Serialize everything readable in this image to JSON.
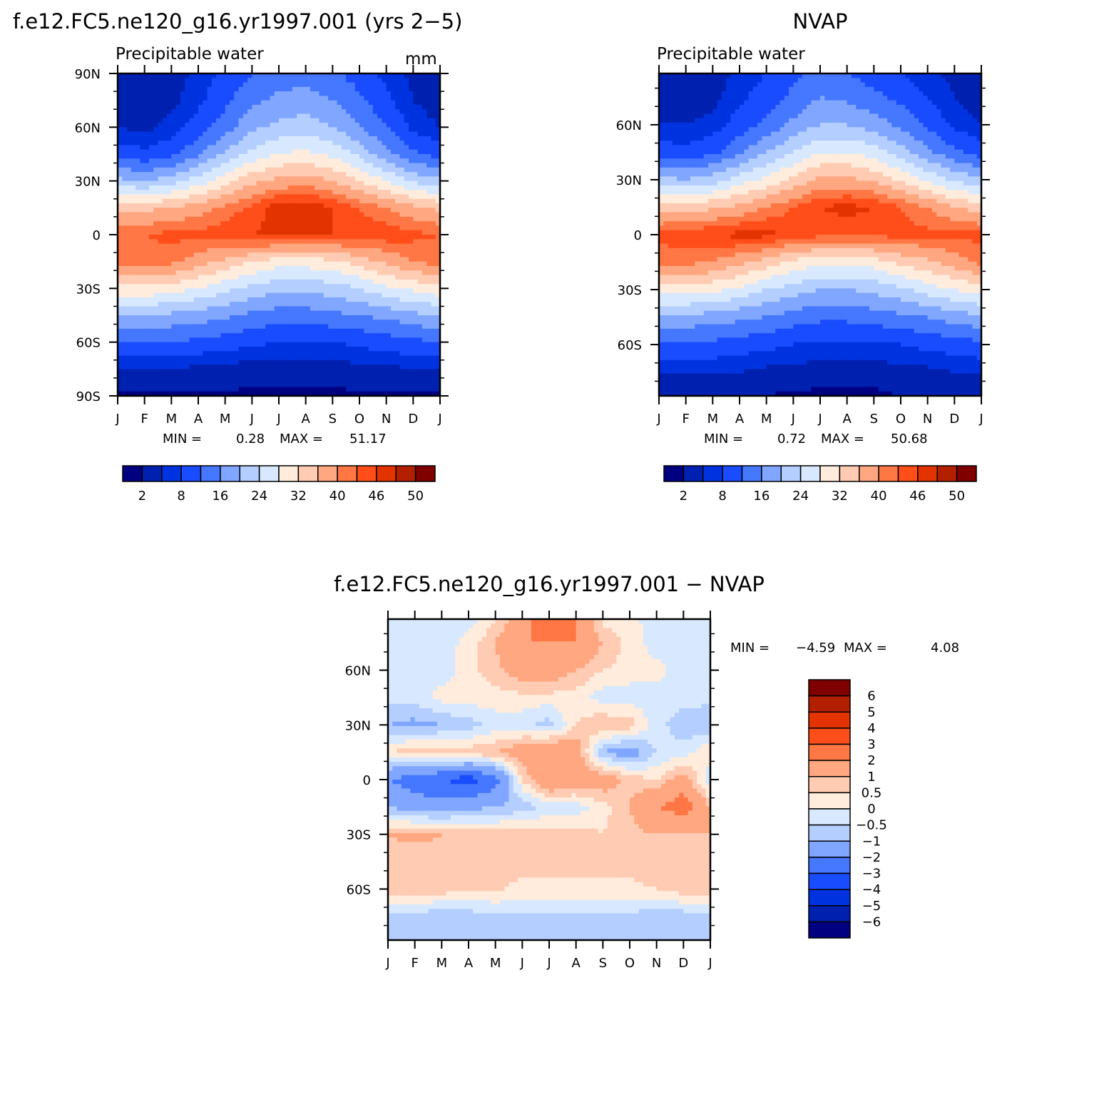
{
  "colors": [
    "#000080",
    "#0021B0",
    "#0033E0",
    "#1A4CFF",
    "#4577FF",
    "#80A6FF",
    "#B4CEFF",
    "#D8E9FF",
    "#FFECDC",
    "#FFCBB2",
    "#FFA780",
    "#FF7744",
    "#FF4E1A",
    "#E23300",
    "#B32000",
    "#800000"
  ],
  "months": [
    "J",
    "F",
    "M",
    "A",
    "M",
    "J",
    "J",
    "A",
    "S",
    "O",
    "N",
    "D",
    "J"
  ],
  "chart_data": [
    {
      "type": "heatmap",
      "title": "f.e12.FC5.ne120_g16.yr1997.001 (yrs 2−5)",
      "subtitle": "Precipitable water",
      "units": "mm",
      "min_label": "MIN =",
      "min_value": "0.28",
      "max_label": "MAX =",
      "max_value": "51.17",
      "ylim": [
        -90,
        90
      ],
      "yticks": [
        {
          "v": 90,
          "label": "90N"
        },
        {
          "v": 60,
          "label": "60N"
        },
        {
          "v": 30,
          "label": "30N"
        },
        {
          "v": 0,
          "label": "0"
        },
        {
          "v": -30,
          "label": "30S"
        },
        {
          "v": -60,
          "label": "60S"
        },
        {
          "v": -90,
          "label": "90S"
        }
      ],
      "levels": [
        2,
        5,
        8,
        12,
        16,
        20,
        24,
        28,
        32,
        36,
        40,
        43,
        46,
        48,
        50
      ],
      "colorbar_labels": [
        "2",
        "8",
        "16",
        "24",
        "32",
        "40",
        "46",
        "50"
      ],
      "lats": [
        90,
        75,
        60,
        45,
        30,
        15,
        0,
        -15,
        -30,
        -45,
        -60,
        -75,
        -90
      ],
      "values": [
        [
          2,
          2,
          3,
          6,
          9,
          12,
          14,
          14,
          13,
          10,
          7,
          4,
          2
        ],
        [
          3,
          2,
          4,
          7,
          11,
          15,
          17,
          18,
          16,
          13,
          9,
          5,
          3
        ],
        [
          5,
          4,
          6,
          10,
          14,
          19,
          21,
          22,
          20,
          16,
          12,
          7,
          5
        ],
        [
          10,
          9,
          11,
          15,
          21,
          25,
          28,
          29,
          27,
          23,
          17,
          13,
          10
        ],
        [
          21,
          20,
          22,
          26,
          30,
          35,
          37,
          38,
          36,
          32,
          28,
          23,
          21
        ],
        [
          35,
          35,
          36,
          38,
          41,
          44,
          48,
          48,
          46,
          43,
          40,
          37,
          35
        ],
        [
          43,
          43,
          44,
          44,
          45,
          46,
          47,
          46,
          46,
          45,
          45,
          44,
          43
        ],
        [
          42,
          42,
          41,
          38,
          35,
          32,
          30,
          30,
          31,
          34,
          37,
          40,
          42
        ],
        [
          31,
          31,
          30,
          28,
          25,
          23,
          21,
          21,
          22,
          24,
          27,
          29,
          31
        ],
        [
          20,
          20,
          19,
          18,
          17,
          15,
          14,
          14,
          15,
          16,
          17,
          19,
          20
        ],
        [
          12,
          12,
          12,
          11,
          10,
          9,
          8,
          8,
          8,
          9,
          10,
          11,
          12
        ],
        [
          5,
          5,
          5,
          4,
          4,
          3,
          3,
          3,
          3,
          4,
          4,
          5,
          5
        ],
        [
          1.5,
          1.5,
          1.5,
          1.5,
          1.5,
          1.5,
          1.5,
          1.5,
          1.5,
          1.5,
          1.5,
          1.5,
          1.5
        ]
      ]
    },
    {
      "type": "heatmap",
      "title": "NVAP",
      "subtitle": "Precipitable water",
      "min_label": "MIN =",
      "min_value": "0.72",
      "max_label": "MAX =",
      "max_value": "50.68",
      "ylim": [
        -88,
        88
      ],
      "yticks": [
        {
          "v": 60,
          "label": "60N"
        },
        {
          "v": 30,
          "label": "30N"
        },
        {
          "v": 0,
          "label": "0"
        },
        {
          "v": -30,
          "label": "30S"
        },
        {
          "v": -60,
          "label": "60S"
        }
      ],
      "levels": [
        2,
        5,
        8,
        12,
        16,
        20,
        24,
        28,
        32,
        36,
        40,
        43,
        46,
        48,
        50
      ],
      "colorbar_labels": [
        "2",
        "8",
        "16",
        "24",
        "32",
        "40",
        "46",
        "50"
      ],
      "lats": [
        88,
        75,
        60,
        45,
        30,
        15,
        0,
        -15,
        -30,
        -45,
        -60,
        -75,
        -88
      ],
      "values": [
        [
          2,
          2,
          3,
          6,
          8,
          11,
          13,
          12,
          10,
          8,
          6,
          4,
          2
        ],
        [
          3,
          3,
          4,
          7,
          10,
          13,
          16,
          15,
          13,
          11,
          8,
          5,
          3
        ],
        [
          5,
          5,
          6,
          10,
          13,
          17,
          20,
          20,
          18,
          15,
          11,
          7,
          5
        ],
        [
          10,
          9,
          11,
          15,
          20,
          24,
          28,
          28,
          26,
          22,
          17,
          13,
          10
        ],
        [
          21,
          20,
          22,
          26,
          29,
          33,
          37,
          37,
          35,
          31,
          27,
          23,
          21
        ],
        [
          34,
          34,
          35,
          37,
          40,
          43,
          46,
          47,
          46,
          43,
          40,
          36,
          34
        ],
        [
          44,
          45,
          46,
          47,
          47,
          45,
          44,
          44,
          44,
          44,
          44,
          44,
          44
        ],
        [
          41,
          41,
          40,
          37,
          34,
          31,
          29,
          29,
          30,
          33,
          35,
          38,
          41
        ],
        [
          30,
          30,
          29,
          27,
          24,
          22,
          20,
          20,
          21,
          23,
          26,
          28,
          30
        ],
        [
          19,
          19,
          18,
          17,
          16,
          14,
          13,
          13,
          14,
          15,
          16,
          18,
          19
        ],
        [
          11,
          11,
          11,
          10,
          9,
          8,
          7,
          7,
          7,
          8,
          9,
          10,
          11
        ],
        [
          5,
          5,
          5,
          5,
          4,
          4,
          3,
          3,
          3,
          4,
          4,
          5,
          5
        ],
        [
          2,
          2,
          2,
          2,
          2,
          1.5,
          1.5,
          1.5,
          1.5,
          2,
          2,
          2,
          2
        ]
      ]
    },
    {
      "type": "heatmap",
      "title": "f.e12.FC5.ne120_g16.yr1997.001 − NVAP",
      "min_label": "MIN =",
      "min_value": "−4.59",
      "max_label": "MAX =",
      "max_value": "4.08",
      "ylim": [
        -88,
        88
      ],
      "yticks": [
        {
          "v": 60,
          "label": "60N"
        },
        {
          "v": 30,
          "label": "30N"
        },
        {
          "v": 0,
          "label": "0"
        },
        {
          "v": -30,
          "label": "30S"
        },
        {
          "v": -60,
          "label": "60S"
        }
      ],
      "levels": [
        -6,
        -5,
        -4,
        -3,
        -2,
        -1,
        -0.5,
        0,
        0.5,
        1,
        2,
        3,
        4,
        5,
        6
      ],
      "colorbar_labels": [
        "6",
        "5",
        "4",
        "3",
        "2",
        "1",
        "0.5",
        "0",
        "−0.5",
        "−1",
        "−2",
        "−3",
        "−4",
        "−5",
        "−6"
      ],
      "lats": [
        88,
        75,
        60,
        45,
        30,
        15,
        0,
        -15,
        -30,
        -45,
        -60,
        -75,
        -88
      ],
      "values": [
        [
          -0.3,
          -0.3,
          -0.3,
          -0.3,
          0.5,
          1.5,
          3,
          2,
          0.3,
          0.2,
          -0.3,
          -0.3,
          -0.3
        ],
        [
          -0.3,
          -0.3,
          -0.3,
          0.2,
          1,
          2,
          2,
          2,
          1,
          0.3,
          -0.3,
          -0.3,
          -0.3
        ],
        [
          -0.3,
          -0.3,
          -0.3,
          0.3,
          0.8,
          1.5,
          1.5,
          1,
          0.5,
          0.3,
          0.2,
          -0.3,
          -0.3
        ],
        [
          -0.3,
          -0.3,
          0.2,
          0.3,
          0.3,
          0.3,
          0.3,
          0.3,
          -0.3,
          -0.3,
          -0.3,
          -0.3,
          -0.3
        ],
        [
          -1,
          -1.2,
          -1,
          -0.8,
          -0.3,
          -0.3,
          -0.8,
          0.5,
          1,
          0.8,
          -0.3,
          -0.8,
          -1
        ],
        [
          0.5,
          0.8,
          0.8,
          0.8,
          1,
          1.5,
          2,
          1.5,
          -1,
          -1.5,
          -0.5,
          -0.3,
          0.5
        ],
        [
          -2,
          -2.5,
          -3,
          -3.5,
          -2.5,
          0.5,
          2,
          1.5,
          1.5,
          0.8,
          0.5,
          1.5,
          -0.5
        ],
        [
          -1,
          -1.5,
          -1.5,
          -1.2,
          -1,
          -0.8,
          -0.3,
          -0.3,
          0.3,
          1,
          2,
          2.5,
          1
        ],
        [
          1,
          1.2,
          1,
          0.8,
          0.8,
          0.8,
          0.8,
          0.8,
          0.5,
          0.8,
          1,
          0.8,
          1
        ],
        [
          0.8,
          0.6,
          0.8,
          0.8,
          0.8,
          0.8,
          0.8,
          0.8,
          0.8,
          0.8,
          1,
          0.8,
          0.8
        ],
        [
          0.8,
          0.8,
          0.8,
          0.6,
          0.6,
          0.3,
          0.3,
          0.3,
          0.3,
          0.3,
          0.5,
          0.8,
          0.8
        ],
        [
          -0.6,
          -0.6,
          -1,
          -0.8,
          -0.6,
          -0.6,
          -0.6,
          -0.6,
          -0.6,
          -0.6,
          -1,
          -0.8,
          -0.6
        ],
        [
          -0.6,
          -0.6,
          -0.6,
          -0.6,
          -0.6,
          -0.6,
          -0.6,
          -0.6,
          -0.6,
          -0.6,
          -0.6,
          -0.6,
          -0.6
        ]
      ]
    }
  ]
}
